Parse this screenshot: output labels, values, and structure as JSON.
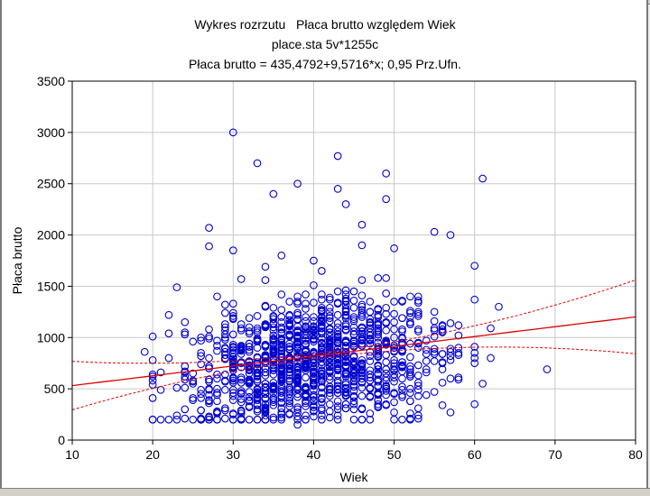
{
  "chart_data": {
    "type": "scatter",
    "title": "Wykres rozrzutu   Płaca brutto względem Wiek",
    "subtitle": "place.sta 5v*1255c",
    "equation": "Płaca brutto = 435,4792+9,5716*x; 0,95 Prz.Ufn.",
    "xlabel": "Wiek",
    "ylabel": "Płaca brutto",
    "xlim": [
      10,
      80
    ],
    "ylim": [
      0,
      3500
    ],
    "xticks": [
      10,
      20,
      30,
      40,
      50,
      60,
      70,
      80
    ],
    "yticks": [
      0,
      500,
      1000,
      1500,
      2000,
      2500,
      3000,
      3500
    ],
    "xtick_labels": [
      "10",
      "20",
      "30",
      "40",
      "50",
      "60",
      "70",
      "80"
    ],
    "ytick_labels": [
      "0",
      "500",
      "1000",
      "1500",
      "2000",
      "2500",
      "3000",
      "3500"
    ],
    "grid": true,
    "regression": {
      "intercept": 435.4792,
      "slope": 9.5716,
      "confidence": 0.95,
      "band_halfwidth_min": 25,
      "band_scale": 2.2
    },
    "n_points": 1255,
    "notable_points": [
      {
        "x": 19,
        "y": 860
      },
      {
        "x": 30,
        "y": 3000
      },
      {
        "x": 33,
        "y": 2700
      },
      {
        "x": 35,
        "y": 2400
      },
      {
        "x": 38,
        "y": 2500
      },
      {
        "x": 38,
        "y": 150
      },
      {
        "x": 43,
        "y": 2770
      },
      {
        "x": 43,
        "y": 2450
      },
      {
        "x": 44,
        "y": 2300
      },
      {
        "x": 49,
        "y": 2600
      },
      {
        "x": 49,
        "y": 2350
      },
      {
        "x": 50,
        "y": 1870
      },
      {
        "x": 55,
        "y": 2030
      },
      {
        "x": 57,
        "y": 2000
      },
      {
        "x": 60,
        "y": 1700
      },
      {
        "x": 60,
        "y": 350
      },
      {
        "x": 61,
        "y": 2550
      },
      {
        "x": 61,
        "y": 550
      },
      {
        "x": 62,
        "y": 800
      },
      {
        "x": 62,
        "y": 1090
      },
      {
        "x": 63,
        "y": 1300
      },
      {
        "x": 69,
        "y": 690
      },
      {
        "x": 27,
        "y": 2070
      },
      {
        "x": 27,
        "y": 1890
      },
      {
        "x": 30,
        "y": 1850
      },
      {
        "x": 31,
        "y": 1570
      },
      {
        "x": 34,
        "y": 1690
      },
      {
        "x": 36,
        "y": 1800
      },
      {
        "x": 40,
        "y": 1750
      },
      {
        "x": 46,
        "y": 2100
      },
      {
        "x": 46,
        "y": 1900
      },
      {
        "x": 53,
        "y": 240
      },
      {
        "x": 53,
        "y": 310
      },
      {
        "x": 22,
        "y": 1220
      },
      {
        "x": 23,
        "y": 1490
      },
      {
        "x": 20,
        "y": 620
      }
    ],
    "bulk_distribution": {
      "x_range": [
        20,
        60
      ],
      "y_center_by_age": {
        "20": 500,
        "30": 650,
        "40": 780,
        "50": 850,
        "60": 900
      },
      "y_spread": 300
    }
  }
}
